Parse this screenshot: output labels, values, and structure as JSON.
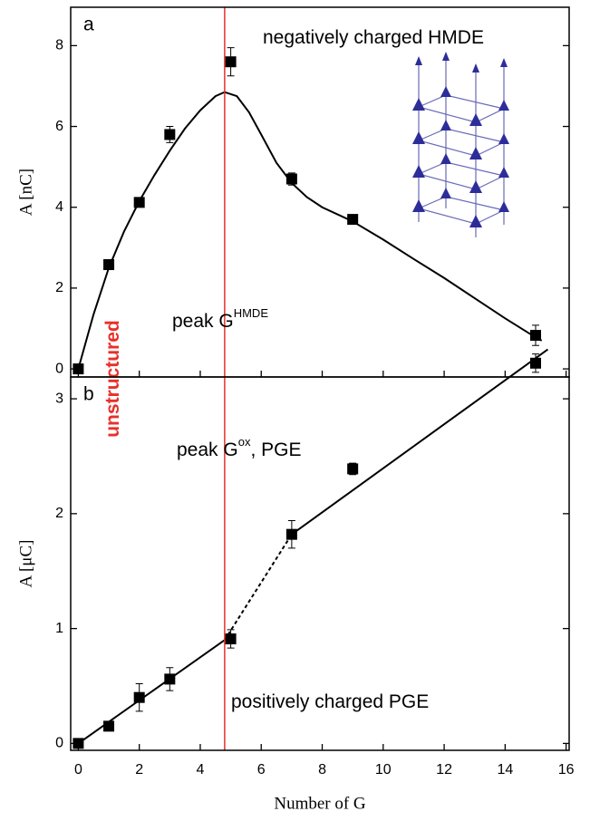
{
  "chart_data": [
    {
      "type": "scatter",
      "panel_label": "a",
      "ylabel": "A [nC]",
      "xlim": [
        -0.25,
        16.1
      ],
      "ylim": [
        -0.2,
        8.95
      ],
      "xticks": [
        0,
        2,
        4,
        6,
        8,
        10,
        12,
        14,
        16
      ],
      "yticks": [
        0,
        2,
        4,
        6,
        8
      ],
      "series": [
        {
          "color": "#000000",
          "x": [
            0,
            1,
            2,
            3,
            5,
            7,
            9,
            15
          ],
          "values": [
            0,
            2.58,
            4.12,
            5.8,
            7.6,
            4.7,
            3.7,
            0.83
          ],
          "errors": [
            0.1,
            0.12,
            0.1,
            0.2,
            0.35,
            0.15,
            0.06,
            0.25
          ]
        }
      ],
      "lines": [
        {
          "x": [
            0,
            0.5,
            1,
            1.5,
            2,
            2.5,
            3,
            3.5,
            4,
            4.5,
            4.8,
            5.2,
            5.6,
            6,
            6.5,
            7,
            7.5,
            8,
            9,
            10,
            11,
            12,
            13,
            14,
            15,
            15.2
          ],
          "values": [
            0,
            1.35,
            2.5,
            3.4,
            4.15,
            4.8,
            5.4,
            5.95,
            6.4,
            6.75,
            6.85,
            6.75,
            6.35,
            5.8,
            5.1,
            4.6,
            4.25,
            4.0,
            3.65,
            3.2,
            2.72,
            2.25,
            1.75,
            1.25,
            0.78,
            0.7
          ],
          "dashed": false
        }
      ],
      "vline": {
        "x": 4.8,
        "color": "#e8302a"
      },
      "annotations": [
        {
          "text": "negatively charged HMDE"
        },
        {
          "text": "peak G",
          "sup": "HMDE"
        },
        {
          "text": "unstructured",
          "color": "#e8302a"
        }
      ]
    },
    {
      "type": "scatter",
      "panel_label": "b",
      "ylabel": "A [μC]",
      "xlabel": "Number of G",
      "xlim": [
        -0.25,
        16.1
      ],
      "ylim": [
        -0.06,
        3.19
      ],
      "xticks": [
        0,
        2,
        4,
        6,
        8,
        10,
        12,
        14,
        16
      ],
      "yticks": [
        0,
        1,
        2,
        3
      ],
      "series": [
        {
          "color": "#000000",
          "x": [
            0,
            1,
            2,
            3,
            5,
            7,
            9,
            15
          ],
          "values": [
            0,
            0.15,
            0.4,
            0.56,
            0.91,
            1.82,
            2.39,
            3.31
          ],
          "errors": [
            0.02,
            0.04,
            0.12,
            0.1,
            0.08,
            0.12,
            0.05,
            0.08
          ]
        }
      ],
      "lines": [
        {
          "x": [
            0,
            4.8
          ],
          "values": [
            0,
            0.9
          ],
          "dashed": false
        },
        {
          "x": [
            4.8,
            7
          ],
          "values": [
            0.9,
            1.82
          ],
          "dashed": true
        },
        {
          "x": [
            7,
            15.4
          ],
          "values": [
            1.82,
            3.43
          ],
          "dashed": false
        }
      ],
      "vline": {
        "x": 4.8,
        "color": "#e8302a"
      },
      "annotations": [
        {
          "text": "peak G",
          "sup": "ox",
          "suffix": ", PGE"
        },
        {
          "text": "positively charged PGE"
        }
      ]
    }
  ]
}
